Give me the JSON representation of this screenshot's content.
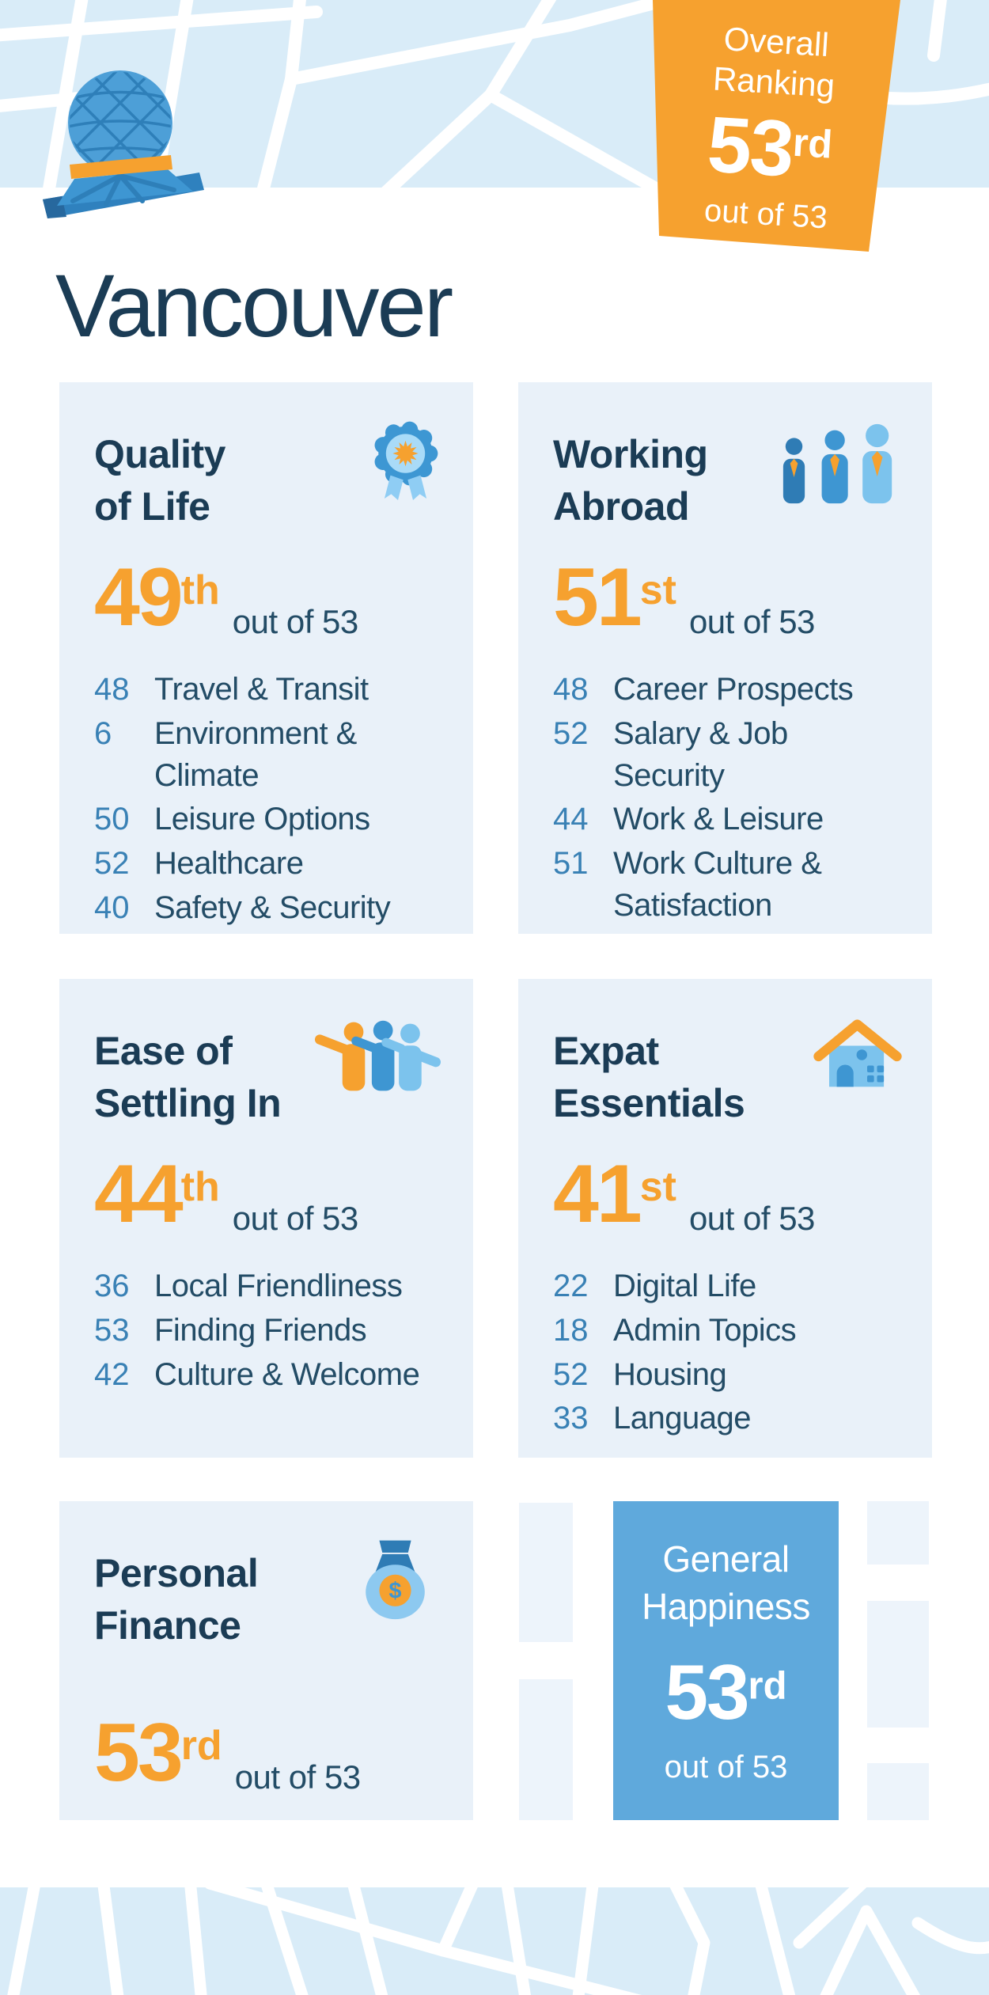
{
  "city": "Vancouver",
  "overall_badge": {
    "line1": "Overall",
    "line2": "Ranking",
    "rank": "53",
    "ordinal": "rd",
    "out_of": "out of 53"
  },
  "cards": [
    {
      "title_line1": "Quality",
      "title_line2": "of Life",
      "icon": "award-rosette-icon",
      "rank": "49",
      "ordinal": "th",
      "out_of": "out of 53",
      "metrics": [
        {
          "value": "48",
          "label": "Travel & Transit"
        },
        {
          "value": "6",
          "label": "Environment & Climate"
        },
        {
          "value": "50",
          "label": "Leisure Options"
        },
        {
          "value": "52",
          "label": "Healthcare"
        },
        {
          "value": "40",
          "label": "Safety & Security"
        }
      ]
    },
    {
      "title_line1": "Working",
      "title_line2": "Abroad",
      "icon": "businesspeople-icon",
      "rank": "51",
      "ordinal": "st",
      "out_of": "out of 53",
      "metrics": [
        {
          "value": "48",
          "label": "Career Prospects"
        },
        {
          "value": "52",
          "label": "Salary & Job Security"
        },
        {
          "value": "44",
          "label": "Work & Leisure"
        },
        {
          "value": "51",
          "label": "Work Culture & Satisfaction"
        }
      ]
    },
    {
      "title_line1": "Ease of",
      "title_line2": "Settling In",
      "icon": "friends-icon",
      "rank": "44",
      "ordinal": "th",
      "out_of": "out of 53",
      "metrics": [
        {
          "value": "36",
          "label": "Local Friendliness"
        },
        {
          "value": "53",
          "label": "Finding Friends"
        },
        {
          "value": "42",
          "label": "Culture & Welcome"
        }
      ]
    },
    {
      "title_line1": "Expat",
      "title_line2": "Essentials",
      "icon": "house-icon",
      "rank": "41",
      "ordinal": "st",
      "out_of": "out of 53",
      "metrics": [
        {
          "value": "22",
          "label": "Digital Life"
        },
        {
          "value": "18",
          "label": "Admin Topics"
        },
        {
          "value": "52",
          "label": "Housing"
        },
        {
          "value": "33",
          "label": "Language"
        }
      ]
    },
    {
      "title_line1": "Personal",
      "title_line2": "Finance",
      "icon": "money-bag-icon",
      "rank": "53",
      "ordinal": "rd",
      "out_of": "out of 53",
      "metrics": []
    }
  ],
  "happiness_card": {
    "title_line1": "General",
    "title_line2": "Happiness",
    "rank": "53",
    "ordinal": "rd",
    "out_of": "out of 53"
  },
  "icons": {
    "money_symbol": "$"
  },
  "colors": {
    "orange": "#F6A12F",
    "navy_title": "#1B3C55",
    "navy_text": "#234C66",
    "metric_blue": "#3981B5",
    "card_bg": "#E9F1F9",
    "map_block_blue": "#D9ECF8",
    "pale_block": "#EDF4FB",
    "happiness_blue": "#5FA9DC",
    "dome_blue": "#4D9FD7",
    "dark_blue": "#2F7CB5",
    "mid_blue": "#3E96D2",
    "light_blue": "#7CC3ED"
  },
  "chart_data": {
    "type": "table",
    "title": "Vancouver — Expat City Ranking",
    "overall_rank": 53,
    "out_of": 53,
    "categories": [
      {
        "name": "Quality of Life",
        "rank": 49,
        "subcategories": [
          [
            "Travel & Transit",
            48
          ],
          [
            "Environment & Climate",
            6
          ],
          [
            "Leisure Options",
            50
          ],
          [
            "Healthcare",
            52
          ],
          [
            "Safety & Security",
            40
          ]
        ]
      },
      {
        "name": "Working Abroad",
        "rank": 51,
        "subcategories": [
          [
            "Career Prospects",
            48
          ],
          [
            "Salary & Job Security",
            52
          ],
          [
            "Work & Leisure",
            44
          ],
          [
            "Work Culture & Satisfaction",
            51
          ]
        ]
      },
      {
        "name": "Ease of Settling In",
        "rank": 44,
        "subcategories": [
          [
            "Local Friendliness",
            36
          ],
          [
            "Finding Friends",
            53
          ],
          [
            "Culture & Welcome",
            42
          ]
        ]
      },
      {
        "name": "Expat Essentials",
        "rank": 41,
        "subcategories": [
          [
            "Digital Life",
            22
          ],
          [
            "Admin Topics",
            18
          ],
          [
            "Housing",
            52
          ],
          [
            "Language",
            33
          ]
        ]
      },
      {
        "name": "Personal Finance",
        "rank": 53,
        "subcategories": []
      },
      {
        "name": "General Happiness",
        "rank": 53,
        "subcategories": []
      }
    ]
  }
}
